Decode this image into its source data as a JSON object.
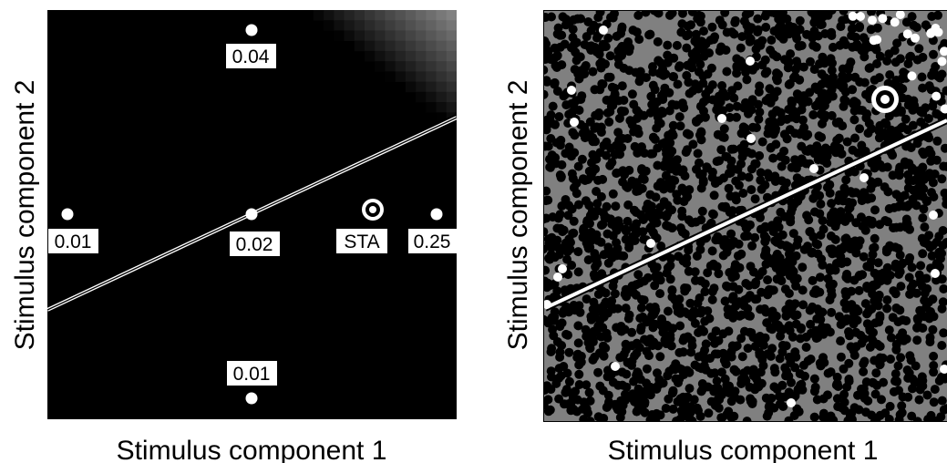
{
  "left_panel": {
    "xlabel": "Stimulus component 1",
    "ylabel": "Stimulus component 2",
    "points": [
      {
        "label": "0.04"
      },
      {
        "label": "0.01"
      },
      {
        "label": "0.02"
      },
      {
        "label": "STA"
      },
      {
        "label": "0.25"
      },
      {
        "label": "0.01"
      }
    ]
  },
  "right_panel": {
    "xlabel": "Stimulus component 1",
    "ylabel": "Stimulus component 2"
  },
  "colors": {
    "background_left": "#000000",
    "background_right": "#808080",
    "dot_black": "#000000",
    "dot_white": "#ffffff",
    "line": "#ffffff"
  }
}
